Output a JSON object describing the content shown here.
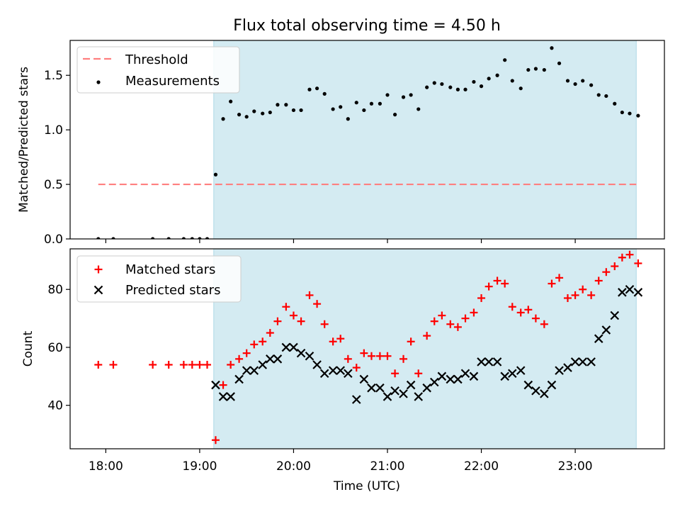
{
  "title": "Flux total observing time = 4.50 h",
  "colors": {
    "threshold": "#ff7f7f",
    "measurement": "#000000",
    "matched": "#ff0000",
    "predicted": "#000000",
    "observing_window": "#add8e6"
  },
  "chart_data": [
    {
      "type": "scatter",
      "panel": "top",
      "title": "Flux total observing time = 4.50 h",
      "xlabel": "",
      "ylabel": "Matched/Predicted stars",
      "x_unit": "hours UTC",
      "xlim": [
        17.62,
        23.95
      ],
      "ylim": [
        0.0,
        1.82
      ],
      "yticks": [
        0.0,
        0.5,
        1.0,
        1.5
      ],
      "ytick_labels": [
        "0.0",
        "0.5",
        "1.0",
        "1.5"
      ],
      "grid": false,
      "legend_placement": "top-left",
      "shaded_span": [
        19.15,
        23.65
      ],
      "threshold": {
        "name": "Threshold",
        "y": 0.5,
        "x_range": [
          17.92,
          23.65
        ],
        "style": "dashed"
      },
      "series": [
        {
          "name": "Measurements",
          "marker": "dot",
          "x": [
            17.92,
            18.08,
            18.5,
            18.67,
            18.83,
            18.92,
            19.0,
            19.08,
            19.17,
            19.25,
            19.33,
            19.42,
            19.5,
            19.58,
            19.67,
            19.75,
            19.83,
            19.92,
            20.0,
            20.08,
            20.17,
            20.25,
            20.33,
            20.42,
            20.5,
            20.58,
            20.67,
            20.75,
            20.83,
            20.92,
            21.0,
            21.08,
            21.17,
            21.25,
            21.33,
            21.42,
            21.5,
            21.58,
            21.67,
            21.75,
            21.83,
            21.92,
            22.0,
            22.08,
            22.17,
            22.25,
            22.33,
            22.42,
            22.5,
            22.58,
            22.67,
            22.75,
            22.83,
            22.92,
            23.0,
            23.08,
            23.17,
            23.25,
            23.33,
            23.42,
            23.5,
            23.58,
            23.67
          ],
          "y": [
            0,
            0,
            0,
            0,
            0,
            0,
            0,
            0,
            0.59,
            1.1,
            1.26,
            1.14,
            1.12,
            1.17,
            1.15,
            1.16,
            1.23,
            1.23,
            1.18,
            1.18,
            1.37,
            1.38,
            1.33,
            1.19,
            1.21,
            1.1,
            1.25,
            1.18,
            1.24,
            1.24,
            1.32,
            1.14,
            1.3,
            1.32,
            1.19,
            1.39,
            1.43,
            1.42,
            1.39,
            1.37,
            1.37,
            1.44,
            1.4,
            1.47,
            1.5,
            1.64,
            1.45,
            1.38,
            1.55,
            1.56,
            1.55,
            1.75,
            1.61,
            1.45,
            1.42,
            1.45,
            1.41,
            1.32,
            1.31,
            1.24,
            1.16,
            1.15,
            1.13
          ]
        }
      ]
    },
    {
      "type": "scatter",
      "panel": "bottom",
      "xlabel": "Time (UTC)",
      "ylabel": "Count",
      "x_unit": "hours UTC",
      "xlim": [
        17.62,
        23.95
      ],
      "ylim": [
        25,
        94
      ],
      "yticks": [
        40,
        60,
        80
      ],
      "ytick_labels": [
        "40",
        "60",
        "80"
      ],
      "xticks": [
        18,
        19,
        20,
        21,
        22,
        23
      ],
      "xtick_labels": [
        "18:00",
        "19:00",
        "20:00",
        "21:00",
        "22:00",
        "23:00"
      ],
      "grid": false,
      "legend_placement": "top-left",
      "shaded_span": [
        19.15,
        23.65
      ],
      "series": [
        {
          "name": "Matched stars",
          "marker": "plus",
          "x": [
            17.92,
            18.08,
            18.5,
            18.67,
            18.83,
            18.92,
            19.0,
            19.08,
            19.17,
            19.25,
            19.33,
            19.42,
            19.5,
            19.58,
            19.67,
            19.75,
            19.83,
            19.92,
            20.0,
            20.08,
            20.17,
            20.25,
            20.33,
            20.42,
            20.5,
            20.58,
            20.67,
            20.75,
            20.83,
            20.92,
            21.0,
            21.08,
            21.17,
            21.25,
            21.33,
            21.42,
            21.5,
            21.58,
            21.67,
            21.75,
            21.83,
            21.92,
            22.0,
            22.08,
            22.17,
            22.25,
            22.33,
            22.42,
            22.5,
            22.58,
            22.67,
            22.75,
            22.83,
            22.92,
            23.0,
            23.08,
            23.17,
            23.25,
            23.33,
            23.42,
            23.5,
            23.58,
            23.67
          ],
          "y": [
            54,
            54,
            54,
            54,
            54,
            54,
            54,
            54,
            28,
            47,
            54,
            56,
            58,
            61,
            62,
            65,
            69,
            74,
            71,
            69,
            78,
            75,
            68,
            62,
            63,
            56,
            53,
            58,
            57,
            57,
            57,
            51,
            56,
            62,
            51,
            64,
            69,
            71,
            68,
            67,
            70,
            72,
            77,
            81,
            83,
            82,
            74,
            72,
            73,
            70,
            68,
            82,
            84,
            77,
            78,
            80,
            78,
            83,
            86,
            88,
            91,
            92,
            89
          ]
        },
        {
          "name": "Predicted stars",
          "marker": "x",
          "x": [
            19.17,
            19.25,
            19.33,
            19.42,
            19.5,
            19.58,
            19.67,
            19.75,
            19.83,
            19.92,
            20.0,
            20.08,
            20.17,
            20.25,
            20.33,
            20.42,
            20.5,
            20.58,
            20.67,
            20.75,
            20.83,
            20.92,
            21.0,
            21.08,
            21.17,
            21.25,
            21.33,
            21.42,
            21.5,
            21.58,
            21.67,
            21.75,
            21.83,
            21.92,
            22.0,
            22.08,
            22.17,
            22.25,
            22.33,
            22.42,
            22.5,
            22.58,
            22.67,
            22.75,
            22.83,
            22.92,
            23.0,
            23.08,
            23.17,
            23.25,
            23.33,
            23.42,
            23.5,
            23.58,
            23.67
          ],
          "y": [
            47,
            43,
            43,
            49,
            52,
            52,
            54,
            56,
            56,
            60,
            60,
            58,
            57,
            54,
            51,
            52,
            52,
            51,
            42,
            49,
            46,
            46,
            43,
            45,
            44,
            47,
            43,
            46,
            48,
            50,
            49,
            49,
            51,
            50,
            55,
            55,
            55,
            50,
            51,
            52,
            47,
            45,
            44,
            47,
            52,
            53,
            55,
            55,
            55,
            63,
            66,
            71,
            79,
            80,
            79
          ]
        }
      ]
    }
  ]
}
